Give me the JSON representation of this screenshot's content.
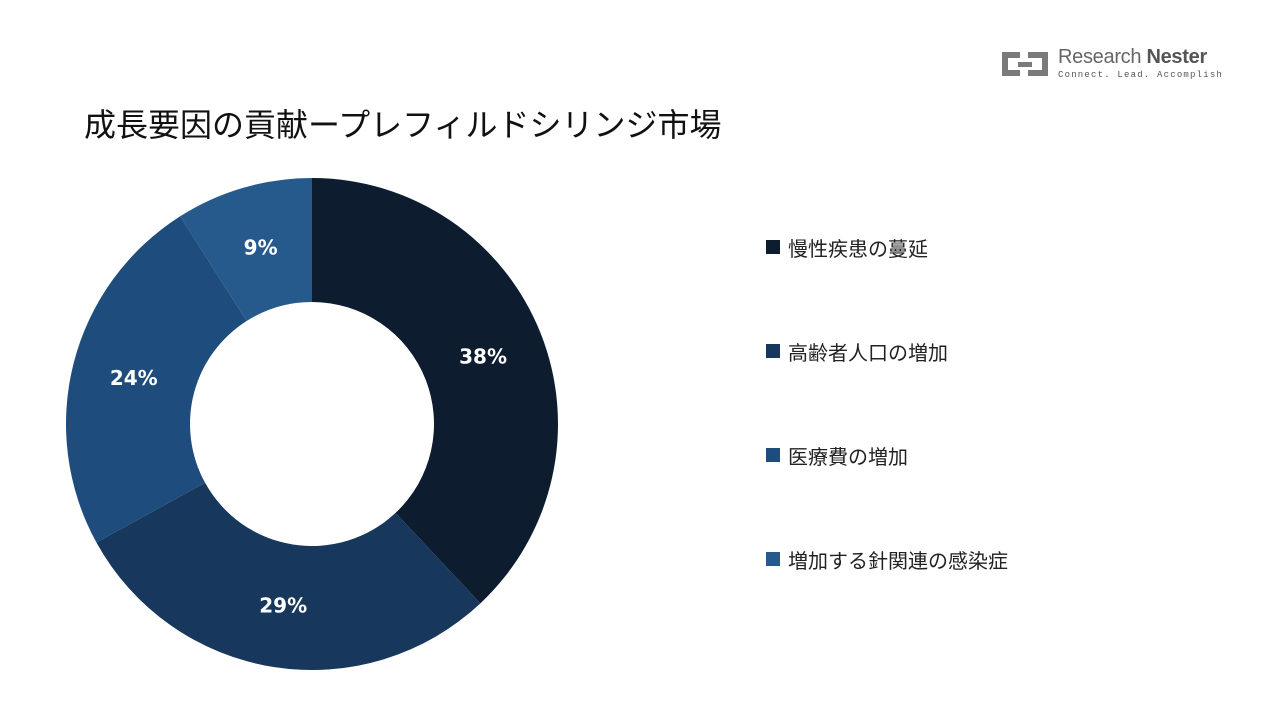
{
  "header": {
    "title": "成長要因の貢献ープレフィルドシリンジ市場"
  },
  "logo": {
    "name_part1": "Research",
    "name_part2": "Nester",
    "tagline": "Connect. Lead. Accomplish",
    "icon": "research-nester-logo-icon"
  },
  "chart_data": {
    "type": "pie",
    "variant": "donut",
    "categories": [
      "慢性疾患の蔓延",
      "高齢者人口の増加",
      "医療費の増加",
      "増加する針関連の感染症"
    ],
    "values": [
      38,
      29,
      24,
      9
    ],
    "data_labels": [
      "38%",
      "29%",
      "24%",
      "9%"
    ],
    "colors": [
      "#0d1d2f",
      "#17385c",
      "#1e4c7d",
      "#275a8c"
    ],
    "title": "成長要因の貢献ープレフィルドシリンジ市場",
    "legend_position": "right"
  }
}
